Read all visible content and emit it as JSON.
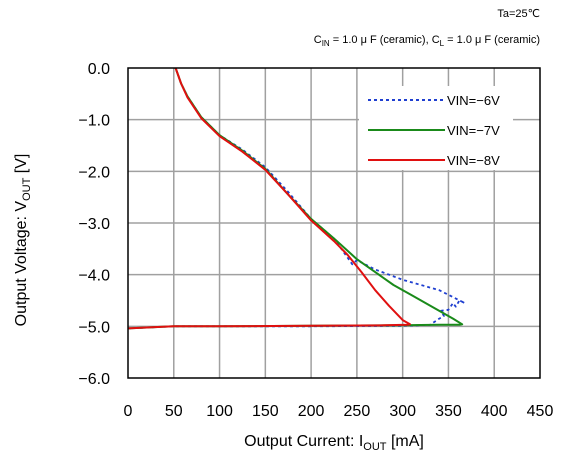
{
  "chart_data": {
    "type": "line",
    "title": "",
    "annotations": {
      "temp": "Ta=25℃",
      "cap": {
        "cin_pre": "C",
        "cin_sub": "IN",
        "cin_post": " = 1.0 μ F (ceramic), ",
        "cl_pre": "C",
        "cl_sub": "L",
        "cl_post": " = 1.0 μ F (ceramic)"
      }
    },
    "xlabel": {
      "pre": "Output Current: I",
      "sub": "OUT",
      "post": " [mA]"
    },
    "ylabel": {
      "pre": "Output Voltage: V",
      "sub": "OUT",
      "post": " [V]"
    },
    "xlim": [
      0,
      450
    ],
    "ylim": [
      -6,
      0
    ],
    "x_ticks": [
      "0",
      "50",
      "100",
      "150",
      "200",
      "250",
      "300",
      "350",
      "400",
      "450"
    ],
    "y_ticks": [
      "0.0",
      "−1.0",
      "−2.0",
      "−3.0",
      "−4.0",
      "−5.0",
      "−6.0"
    ],
    "grid": true,
    "legend_position": "top-right",
    "series": [
      {
        "name": "VIN=−6V",
        "color": "#1f3fd0",
        "style": "dotted",
        "points": [
          [
            0,
            -5.04
          ],
          [
            50,
            -5.0
          ],
          [
            100,
            -5.0
          ],
          [
            200,
            -5.0
          ],
          [
            300,
            -4.99
          ],
          [
            330,
            -4.97
          ],
          [
            340,
            -4.85
          ],
          [
            345,
            -4.8
          ],
          [
            342,
            -4.7
          ],
          [
            350,
            -4.68
          ],
          [
            355,
            -4.55
          ],
          [
            358,
            -4.62
          ],
          [
            362,
            -4.5
          ],
          [
            368,
            -4.55
          ],
          [
            340,
            -4.3
          ],
          [
            300,
            -4.1
          ],
          [
            270,
            -3.9
          ],
          [
            250,
            -3.72
          ],
          [
            245,
            -3.8
          ],
          [
            225,
            -3.3
          ],
          [
            200,
            -2.92
          ],
          [
            175,
            -2.4
          ],
          [
            150,
            -1.92
          ],
          [
            125,
            -1.58
          ],
          [
            100,
            -1.3
          ],
          [
            80,
            -0.95
          ],
          [
            65,
            -0.55
          ],
          [
            58,
            -0.3
          ],
          [
            52,
            0.0
          ]
        ]
      },
      {
        "name": "VIN=−7V",
        "color": "#1a8a1a",
        "style": "solid",
        "points": [
          [
            0,
            -5.04
          ],
          [
            50,
            -5.0
          ],
          [
            100,
            -5.0
          ],
          [
            200,
            -4.99
          ],
          [
            300,
            -4.98
          ],
          [
            340,
            -4.97
          ],
          [
            362,
            -4.97
          ],
          [
            365,
            -4.96
          ],
          [
            355,
            -4.85
          ],
          [
            335,
            -4.65
          ],
          [
            310,
            -4.4
          ],
          [
            290,
            -4.2
          ],
          [
            270,
            -3.95
          ],
          [
            250,
            -3.7
          ],
          [
            225,
            -3.3
          ],
          [
            200,
            -2.92
          ],
          [
            175,
            -2.45
          ],
          [
            150,
            -1.95
          ],
          [
            125,
            -1.6
          ],
          [
            100,
            -1.3
          ],
          [
            80,
            -0.95
          ],
          [
            65,
            -0.55
          ],
          [
            58,
            -0.3
          ],
          [
            52,
            0.0
          ]
        ]
      },
      {
        "name": "VIN=−8V",
        "color": "#e01010",
        "style": "solid",
        "points": [
          [
            0,
            -5.04
          ],
          [
            50,
            -5.0
          ],
          [
            100,
            -5.0
          ],
          [
            200,
            -4.99
          ],
          [
            280,
            -4.98
          ],
          [
            305,
            -4.97
          ],
          [
            308,
            -4.96
          ],
          [
            300,
            -4.88
          ],
          [
            285,
            -4.6
          ],
          [
            270,
            -4.3
          ],
          [
            255,
            -3.95
          ],
          [
            240,
            -3.62
          ],
          [
            225,
            -3.35
          ],
          [
            200,
            -2.95
          ],
          [
            175,
            -2.45
          ],
          [
            150,
            -1.97
          ],
          [
            125,
            -1.62
          ],
          [
            100,
            -1.32
          ],
          [
            80,
            -0.97
          ],
          [
            65,
            -0.57
          ],
          [
            58,
            -0.3
          ],
          [
            52,
            0.0
          ]
        ]
      }
    ]
  }
}
